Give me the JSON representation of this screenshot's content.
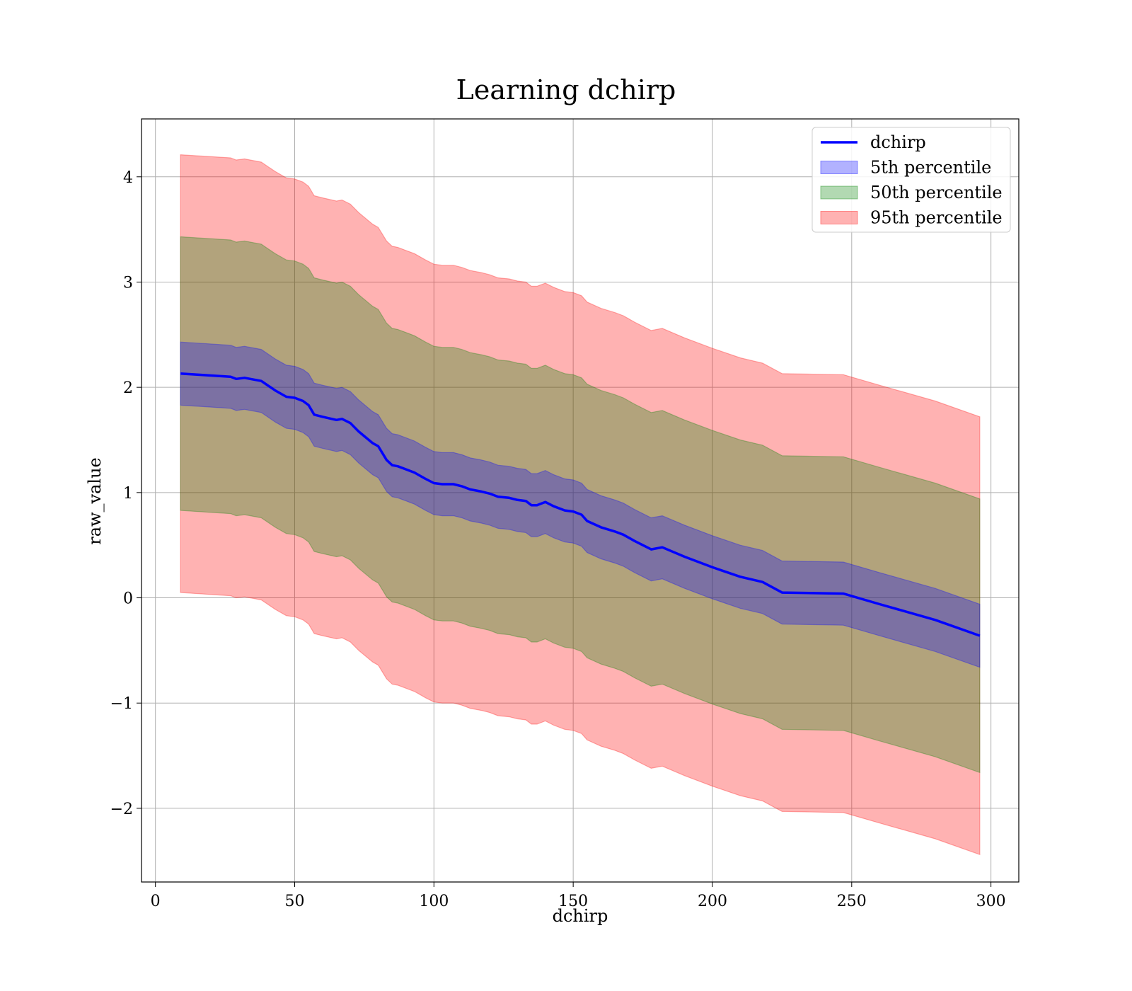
{
  "chart_data": {
    "type": "area",
    "title": "Learning dchirp",
    "xlabel": "dchirp",
    "ylabel": "raw_value",
    "xlim": [
      -5,
      310
    ],
    "ylim": [
      -2.7,
      4.55
    ],
    "xticks": [
      0,
      50,
      100,
      150,
      200,
      250,
      300
    ],
    "yticks": [
      -2,
      -1,
      0,
      1,
      2,
      3,
      4
    ],
    "xtick_labels": [
      "0",
      "50",
      "100",
      "150",
      "200",
      "250",
      "300"
    ],
    "ytick_labels": [
      "−2",
      "−1",
      "0",
      "1",
      "2",
      "3",
      "4"
    ],
    "grid": true,
    "legend": "top-right",
    "x": [
      9,
      27,
      29,
      32,
      38,
      43,
      47,
      50,
      53,
      55,
      57,
      60,
      65,
      67,
      70,
      73,
      78,
      80,
      83,
      85,
      87,
      90,
      93,
      95,
      97,
      100,
      103,
      107,
      110,
      113,
      117,
      120,
      123,
      127,
      130,
      133,
      135,
      137,
      140,
      143,
      147,
      150,
      153,
      155,
      160,
      165,
      168,
      172,
      178,
      182,
      190,
      200,
      210,
      218,
      225,
      247,
      260,
      280,
      296
    ],
    "series": [
      {
        "name": "dchirp",
        "kind": "line",
        "color": "#0000ff",
        "values": [
          2.13,
          2.1,
          2.08,
          2.09,
          2.06,
          1.97,
          1.91,
          1.9,
          1.87,
          1.83,
          1.74,
          1.72,
          1.69,
          1.7,
          1.66,
          1.58,
          1.47,
          1.44,
          1.31,
          1.26,
          1.25,
          1.22,
          1.19,
          1.16,
          1.13,
          1.09,
          1.08,
          1.08,
          1.06,
          1.03,
          1.01,
          0.99,
          0.96,
          0.95,
          0.93,
          0.92,
          0.88,
          0.88,
          0.91,
          0.87,
          0.83,
          0.82,
          0.79,
          0.73,
          0.67,
          0.63,
          0.6,
          0.54,
          0.46,
          0.48,
          0.39,
          0.29,
          0.2,
          0.15,
          0.05,
          0.04,
          -0.06,
          -0.21,
          -0.36
        ]
      },
      {
        "name": "5th percentile",
        "kind": "band",
        "color": "#0000ff",
        "opacity": 0.3,
        "half_width": 0.3
      },
      {
        "name": "50th percentile",
        "kind": "band",
        "color": "#008000",
        "opacity": 0.3,
        "half_width": 1.3
      },
      {
        "name": "95th percentile",
        "kind": "band",
        "color": "#ff0000",
        "opacity": 0.3,
        "half_width": 2.08
      }
    ]
  }
}
